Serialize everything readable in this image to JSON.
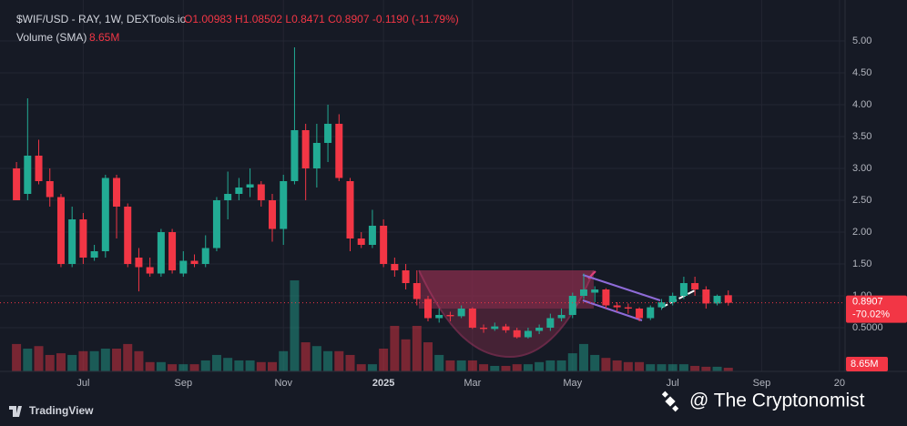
{
  "chart_data": {
    "type": "candlestick",
    "title": "$WIF/USD - RAY, 1W, DEXTools.io",
    "subtitle": "O1.00983 H1.08502 L0.8471 C0.8907 -0.1190 (-11.79%)",
    "volume_title": "Volume (SMA)",
    "volume_label": "8.65M",
    "last_price_label": "0.8907",
    "last_change_label": "-70.02%",
    "up_color": "#22ab94",
    "down_color": "#f23645",
    "grid": true,
    "categories": [
      null,
      null,
      null,
      null,
      null,
      null,
      "Jul",
      null,
      null,
      null,
      null,
      null,
      null,
      null,
      null,
      "Sep",
      null,
      null,
      null,
      null,
      null,
      null,
      null,
      null,
      "Nov",
      null,
      null,
      null,
      null,
      null,
      null,
      null,
      null,
      "2025",
      null,
      null,
      null,
      null,
      null,
      null,
      null,
      "Mar",
      null,
      null,
      null,
      null,
      null,
      null,
      null,
      null,
      "May",
      null,
      null,
      null,
      null,
      null,
      null,
      null,
      null,
      "Jul",
      null,
      null,
      null,
      null,
      null,
      null,
      null,
      "Sep",
      null,
      null,
      null,
      null,
      null,
      null,
      "20"
    ],
    "open": [
      3.0,
      2.6,
      3.2,
      2.8,
      2.55,
      1.5,
      2.2,
      1.6,
      1.7,
      2.85,
      2.4,
      1.6,
      1.45,
      1.35,
      2.0,
      1.35,
      1.55,
      1.5,
      1.75,
      2.5,
      2.6,
      2.7,
      2.75,
      2.5,
      2.05,
      2.8,
      3.6,
      3.0,
      3.4,
      3.7,
      2.8,
      1.9,
      1.8,
      2.1,
      1.5,
      1.4,
      1.2,
      0.95,
      0.65,
      0.7,
      0.68,
      0.8,
      0.5,
      0.48,
      0.52,
      0.46,
      0.35,
      0.45,
      0.5,
      0.65,
      0.7,
      1.0,
      1.05,
      1.1,
      0.85,
      0.82,
      0.8,
      0.65,
      0.82,
      0.9,
      1.0,
      1.2,
      1.1,
      0.88,
      1.00983,
      null,
      null,
      null,
      null,
      null,
      null,
      null,
      null,
      null,
      null
    ],
    "high": [
      3.1,
      4.1,
      3.45,
      3.0,
      2.6,
      2.4,
      2.3,
      1.8,
      2.9,
      2.9,
      2.45,
      1.75,
      1.6,
      2.05,
      2.05,
      1.7,
      1.65,
      1.95,
      2.55,
      2.95,
      2.85,
      3.0,
      2.8,
      2.6,
      2.9,
      4.9,
      3.7,
      3.7,
      4.0,
      3.85,
      2.85,
      2.0,
      2.35,
      2.2,
      1.6,
      1.5,
      1.4,
      1.0,
      0.8,
      0.75,
      0.85,
      0.82,
      0.55,
      0.58,
      0.56,
      0.5,
      0.5,
      0.55,
      0.72,
      0.8,
      1.05,
      1.35,
      1.15,
      1.12,
      0.9,
      0.88,
      0.82,
      0.85,
      0.95,
      1.05,
      1.3,
      1.3,
      1.15,
      1.02,
      1.08502,
      null,
      null,
      null,
      null,
      null,
      null,
      null,
      null,
      null,
      null
    ],
    "low": [
      2.5,
      2.5,
      2.75,
      2.4,
      1.45,
      1.45,
      1.5,
      1.55,
      1.6,
      1.9,
      1.45,
      1.07,
      1.3,
      1.3,
      1.35,
      1.3,
      1.45,
      1.45,
      1.7,
      2.2,
      2.5,
      2.55,
      2.4,
      1.85,
      1.8,
      2.75,
      2.5,
      2.7,
      3.1,
      2.8,
      1.7,
      1.75,
      1.75,
      1.45,
      1.3,
      1.1,
      0.85,
      0.6,
      0.58,
      0.6,
      0.65,
      0.48,
      0.42,
      0.45,
      0.42,
      0.33,
      0.33,
      0.4,
      0.45,
      0.6,
      0.65,
      0.95,
      0.9,
      0.8,
      0.75,
      0.72,
      0.6,
      0.62,
      0.78,
      0.85,
      0.95,
      1.0,
      0.8,
      0.85,
      0.8471,
      null,
      null,
      null,
      null,
      null,
      null,
      null,
      null,
      null,
      null
    ],
    "close": [
      2.5,
      3.2,
      2.8,
      2.55,
      1.5,
      2.2,
      1.6,
      1.7,
      2.85,
      2.4,
      1.5,
      1.45,
      1.35,
      2.0,
      1.4,
      1.55,
      1.5,
      1.75,
      2.5,
      2.6,
      2.7,
      2.75,
      2.5,
      2.05,
      2.8,
      3.6,
      3.0,
      3.4,
      3.7,
      2.85,
      1.9,
      1.8,
      2.1,
      1.5,
      1.4,
      1.2,
      0.95,
      0.65,
      0.7,
      0.68,
      0.8,
      0.5,
      0.48,
      0.52,
      0.46,
      0.35,
      0.45,
      0.5,
      0.65,
      0.7,
      1.0,
      1.1,
      1.1,
      0.85,
      0.82,
      0.8,
      0.65,
      0.82,
      0.9,
      1.0,
      1.2,
      1.1,
      0.88,
      1.0,
      0.8907,
      null,
      null,
      null,
      null,
      null,
      null,
      null,
      null,
      null,
      null
    ],
    "volume": [
      65,
      54,
      60,
      39,
      43,
      39,
      48,
      48,
      54,
      54,
      65,
      48,
      22,
      22,
      17,
      17,
      17,
      26,
      39,
      32,
      26,
      26,
      22,
      22,
      48,
      216,
      69,
      60,
      48,
      48,
      39,
      17,
      17,
      54,
      108,
      76,
      108,
      69,
      39,
      26,
      26,
      26,
      17,
      13,
      13,
      17,
      17,
      22,
      26,
      26,
      43,
      65,
      39,
      32,
      26,
      22,
      22,
      17,
      17,
      17,
      17,
      13,
      11,
      11,
      8.65,
      null,
      null,
      null,
      null,
      null,
      null,
      null,
      null,
      null,
      null
    ],
    "ylim": [
      -0.2,
      5.5
    ],
    "yticks": [
      {
        "value": 0.5,
        "label": "0.5000"
      },
      {
        "value": 1,
        "label": "1.00"
      },
      {
        "value": 1.5,
        "label": "1.50"
      },
      {
        "value": 2,
        "label": "2.00"
      },
      {
        "value": 2.5,
        "label": "2.50"
      },
      {
        "value": 3,
        "label": "3.00"
      },
      {
        "value": 3.5,
        "label": "3.50"
      },
      {
        "value": 4,
        "label": "4.00"
      },
      {
        "value": 4.5,
        "label": "4.50"
      },
      {
        "value": 5,
        "label": "5.00"
      }
    ],
    "footer": {
      "brand": "TradingView",
      "watermark": "@ The Cryptonomist"
    }
  }
}
